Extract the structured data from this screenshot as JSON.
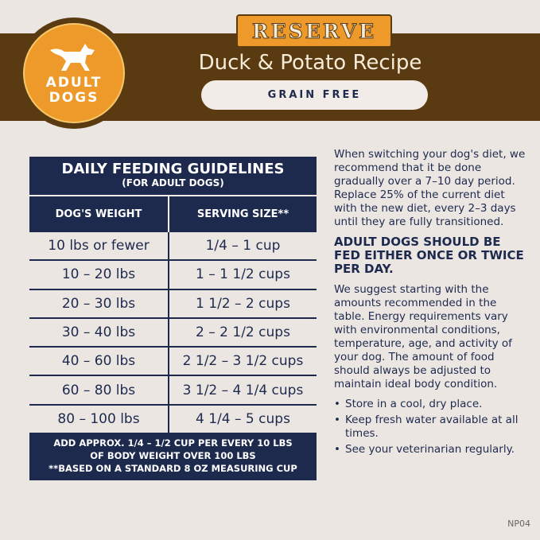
{
  "header": {
    "badge": {
      "line1": "ADULT",
      "line2": "DOGS",
      "icon": "dog-icon"
    },
    "brand": "RESERVE",
    "recipe": "Duck & Potato Recipe",
    "tag": "GRAIN FREE"
  },
  "table": {
    "title": "DAILY FEEDING GUIDELINES",
    "subtitle": "(FOR ADULT DOGS)",
    "columns": [
      "DOG'S WEIGHT",
      "SERVING SIZE**"
    ],
    "rows": [
      [
        "10 lbs or fewer",
        "1/4 – 1 cup"
      ],
      [
        "10 – 20 lbs",
        "1 – 1 1/2 cups"
      ],
      [
        "20 – 30 lbs",
        "1 1/2 – 2 cups"
      ],
      [
        "30 – 40 lbs",
        "2 – 2 1/2 cups"
      ],
      [
        "40 – 60 lbs",
        "2 1/2 – 3 1/2 cups"
      ],
      [
        "60 – 80 lbs",
        "3 1/2 – 4 1/4 cups"
      ],
      [
        "80 – 100 lbs",
        "4 1/4 – 5 cups"
      ]
    ],
    "footer1": "ADD APPROX. 1/4 – 1/2 CUP PER EVERY 10 LBS",
    "footer2": "OF BODY WEIGHT OVER 100 LBS",
    "footer3": "**BASED ON A STANDARD 8 OZ MEASURING CUP"
  },
  "side": {
    "intro": "When switching your dog's diet, we recommend that it be done gradually over a 7–10 day period. Replace 25% of the current diet with the new diet, every 2–3 days until they are fully transitioned.",
    "heading": "ADULT DOGS SHOULD BE FED EITHER ONCE OR TWICE PER DAY.",
    "body": "We suggest starting with the amounts recommended in the table. Energy requirements vary with environmental conditions, temperature, age, and activity of your dog. The amount of food should always be adjusted to maintain ideal body condition.",
    "bullets": [
      "Store in a cool, dry place.",
      "Keep fresh water available at all times.",
      "See your veterinarian regularly."
    ]
  },
  "code": "NP04",
  "colors": {
    "navy": "#1d2a4e",
    "brown": "#5a3a10",
    "orange": "#ee9a2a",
    "background": "#ece6e2"
  }
}
